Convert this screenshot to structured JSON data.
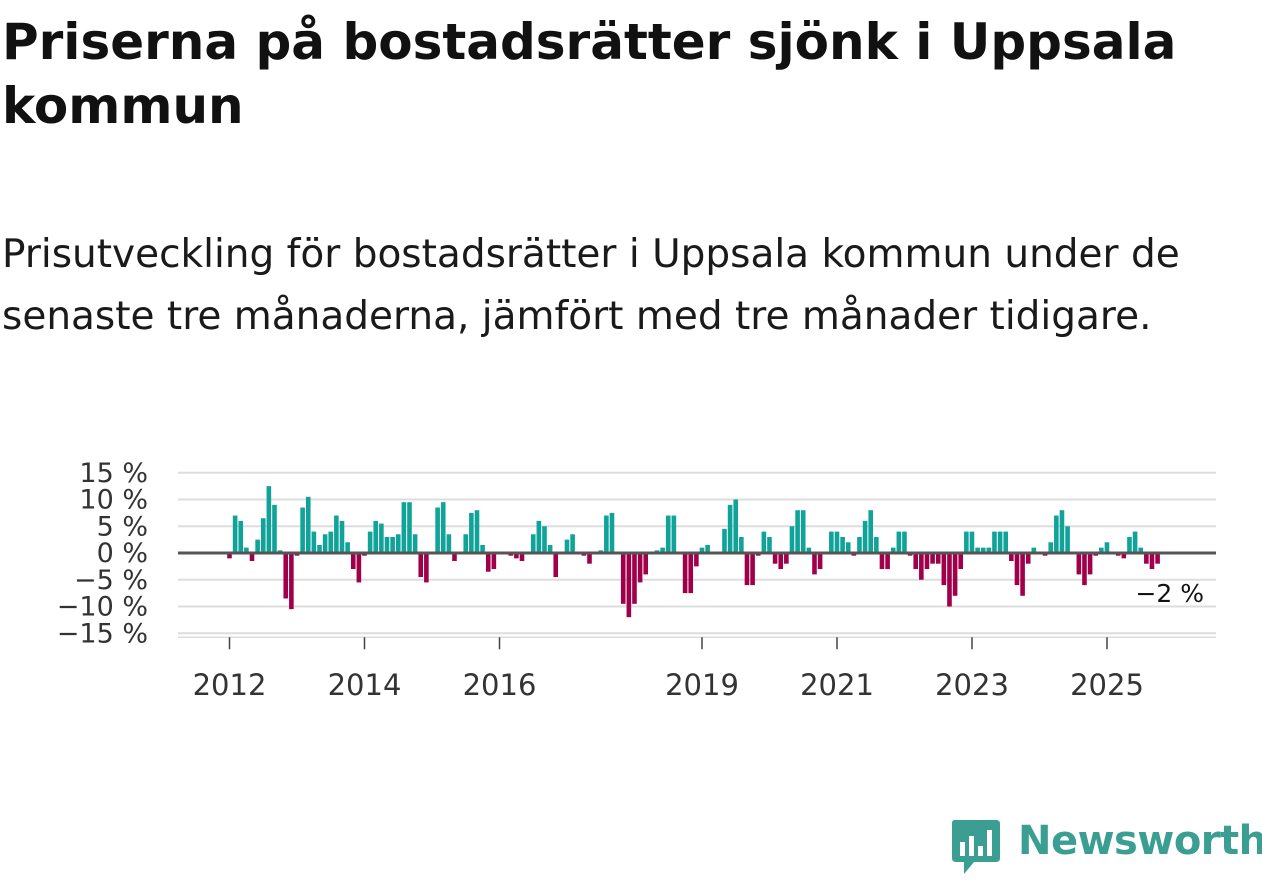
{
  "header": {
    "title": "Priserna på bostadsrätter sjönk i Uppsala kommun",
    "subtitle": "Prisutveckling för bostadsrätter i Uppsala kommun under de senaste tre månaderna, jämfört med tre månader tidigare."
  },
  "brand": {
    "name": "Newsworthy",
    "color": "#3a9e93"
  },
  "colors": {
    "positive": "#0fa39a",
    "negative": "#a0004a",
    "zero_line": "#555555",
    "grid": "#dddddd"
  },
  "chart_data": {
    "type": "bar",
    "title": "Prisutveckling för bostadsrätter i Uppsala kommun",
    "xlabel": "",
    "ylabel": "",
    "ylim": [
      -15,
      15
    ],
    "x_start": 2012.0,
    "step_years": 0.08333,
    "y_ticks": [
      {
        "v": 15,
        "label": "15 %"
      },
      {
        "v": 10,
        "label": "10 %"
      },
      {
        "v": 5,
        "label": "5 %"
      },
      {
        "v": 0,
        "label": "0 %"
      },
      {
        "v": -5,
        "label": "−5 %"
      },
      {
        "v": -10,
        "label": "−10 %"
      },
      {
        "v": -15,
        "label": "−15 %"
      }
    ],
    "x_ticks": [
      {
        "year": 2012,
        "label": "2012"
      },
      {
        "year": 2014,
        "label": "2014"
      },
      {
        "year": 2016,
        "label": "2016"
      },
      {
        "year": 2019,
        "label": "2019"
      },
      {
        "year": 2021,
        "label": "2021"
      },
      {
        "year": 2023,
        "label": "2023"
      },
      {
        "year": 2025,
        "label": "2025"
      }
    ],
    "last_label": "−2 %",
    "values": [
      -1,
      7,
      6,
      1,
      -1.5,
      2.5,
      6.5,
      12.5,
      9,
      0.5,
      -8.5,
      -10.5,
      -0.5,
      8.5,
      10.5,
      4,
      1.5,
      3.5,
      4,
      7,
      6,
      2,
      -3,
      -5.5,
      -0.5,
      4,
      6,
      5.5,
      3,
      3,
      3.5,
      9.5,
      9.5,
      3.5,
      -4.5,
      -5.5,
      0,
      8.5,
      9.5,
      3.5,
      -1.5,
      0,
      3.5,
      7.5,
      8,
      1.5,
      -3.5,
      -3,
      0,
      0,
      -0.5,
      -1,
      -1.5,
      0,
      3.5,
      6,
      5,
      1.5,
      -4.5,
      0,
      2.5,
      3.5,
      0,
      -0.5,
      -2,
      0,
      0.5,
      7,
      7.5,
      0,
      -9.5,
      -12,
      -9.5,
      -5.5,
      -4,
      0,
      0.5,
      1,
      7,
      7,
      0,
      -7.5,
      -7.5,
      -2.5,
      1,
      1.5,
      0,
      0,
      4.5,
      9,
      10,
      3,
      -6,
      -6,
      -0.5,
      4,
      3,
      -2,
      -3,
      -2,
      5,
      8,
      8,
      1,
      -4,
      -3,
      0,
      4,
      4,
      3,
      2,
      -0.5,
      3,
      6,
      8,
      3,
      -3,
      -3,
      1,
      4,
      4,
      -0.5,
      -3,
      -5,
      -3,
      -2,
      -2,
      -6,
      -10,
      -8,
      -3,
      4,
      4,
      1,
      1,
      1,
      4,
      4,
      4,
      -1.5,
      -6,
      -8,
      -2,
      1,
      0,
      -0.5,
      2,
      7,
      8,
      5,
      0,
      -4,
      -6,
      -4,
      -0.5,
      1,
      2,
      0,
      -0.5,
      -1,
      3,
      4,
      1,
      -2,
      -3,
      -2
    ]
  }
}
